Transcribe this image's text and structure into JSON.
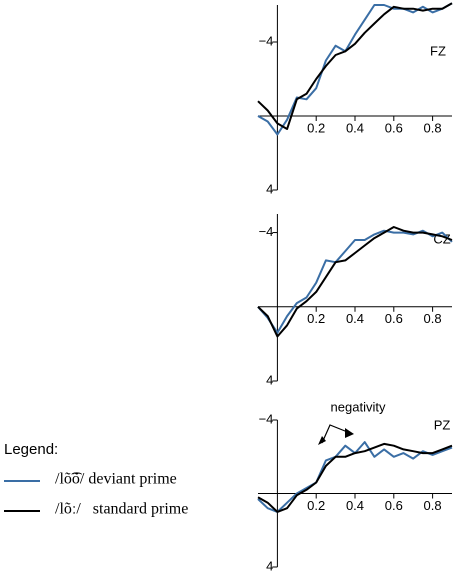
{
  "legend_title": "Legend:",
  "chart_data": [
    {
      "type": "line",
      "title": "FZ",
      "x": [
        -0.1,
        -0.05,
        0,
        0.05,
        0.1,
        0.15,
        0.2,
        0.25,
        0.3,
        0.35,
        0.4,
        0.45,
        0.5,
        0.55,
        0.6,
        0.65,
        0.7,
        0.75,
        0.8,
        0.85,
        0.9
      ],
      "xlim": [
        -0.1,
        0.9
      ],
      "xticks": [
        0.2,
        0.4,
        0.6,
        0.8
      ],
      "ylim": [
        4,
        -6
      ],
      "yticks": [
        {
          "value": -4,
          "label": "−4"
        },
        4
      ],
      "series": [
        {
          "name": "/lõ͡õ/ deviant prime",
          "color": "#3a6ea5",
          "values": [
            0.0,
            0.3,
            1.0,
            0.2,
            -1.0,
            -0.9,
            -1.5,
            -3.0,
            -3.8,
            -3.5,
            -4.4,
            -5.2,
            -6.0,
            -6.0,
            -5.8,
            -5.8,
            -5.6,
            -5.9,
            -5.6,
            -5.8,
            -6.1
          ]
        },
        {
          "name": "/lõː/   standard prime",
          "color": "#000000",
          "values": [
            -0.8,
            -0.3,
            0.4,
            0.7,
            -0.9,
            -1.2,
            -2.0,
            -2.7,
            -3.3,
            -3.5,
            -3.9,
            -4.5,
            -5.0,
            -5.5,
            -5.9,
            -5.8,
            -5.8,
            -5.7,
            -5.8,
            -5.8,
            -6.1
          ]
        }
      ]
    },
    {
      "type": "line",
      "title": "CZ",
      "x": [
        -0.1,
        -0.05,
        0,
        0.05,
        0.1,
        0.15,
        0.2,
        0.25,
        0.3,
        0.35,
        0.4,
        0.45,
        0.5,
        0.55,
        0.6,
        0.65,
        0.7,
        0.75,
        0.8,
        0.85,
        0.9
      ],
      "xlim": [
        -0.1,
        0.9
      ],
      "xticks": [
        0.2,
        0.4,
        0.6,
        0.8
      ],
      "ylim": [
        4,
        -5
      ],
      "yticks": [
        {
          "value": -4,
          "label": "−4"
        },
        4
      ],
      "series": [
        {
          "name": "/lõ͡õ/ deviant prime",
          "color": "#3a6ea5",
          "values": [
            0,
            0.6,
            1.4,
            0.5,
            -0.2,
            -0.5,
            -1.3,
            -2.5,
            -2.4,
            -3.0,
            -3.6,
            -3.6,
            -3.9,
            -4.1,
            -4.0,
            -4.0,
            -3.9,
            -4.1,
            -3.8,
            -4.0,
            -3.5
          ]
        },
        {
          "name": "/lõː/   standard prime",
          "color": "#000000",
          "values": [
            0,
            0.5,
            1.6,
            1.0,
            0.1,
            -0.3,
            -0.8,
            -1.6,
            -2.4,
            -2.5,
            -2.9,
            -3.3,
            -3.7,
            -4.0,
            -4.3,
            -4.1,
            -4.0,
            -4.0,
            -3.9,
            -3.8,
            -3.6
          ]
        }
      ]
    },
    {
      "type": "line",
      "title": "PZ",
      "annotation": "negativity",
      "x": [
        -0.1,
        -0.05,
        0,
        0.05,
        0.1,
        0.15,
        0.2,
        0.25,
        0.3,
        0.35,
        0.4,
        0.45,
        0.5,
        0.55,
        0.6,
        0.65,
        0.7,
        0.75,
        0.8,
        0.85,
        0.9
      ],
      "xlim": [
        -0.1,
        0.9
      ],
      "xticks": [
        0.2,
        0.4,
        0.6,
        0.8
      ],
      "ylim": [
        4,
        -4
      ],
      "yticks": [
        {
          "value": -4,
          "label": "−4"
        },
        4
      ],
      "series": [
        {
          "name": "/lõ͡õ/ deviant prime",
          "color": "#3a6ea5",
          "values": [
            0.3,
            0.8,
            1.0,
            0.5,
            0.0,
            -0.3,
            -0.6,
            -1.8,
            -2.0,
            -2.6,
            -2.2,
            -2.8,
            -2.0,
            -2.4,
            -2.0,
            -2.2,
            -1.9,
            -2.3,
            -2.1,
            -2.3,
            -2.5
          ]
        },
        {
          "name": "/lõː/   standard prime",
          "color": "#000000",
          "values": [
            0.2,
            0.5,
            1.0,
            0.8,
            0.1,
            -0.2,
            -0.6,
            -1.5,
            -2.0,
            -2.0,
            -2.2,
            -2.3,
            -2.5,
            -2.7,
            -2.6,
            -2.4,
            -2.3,
            -2.2,
            -2.2,
            -2.4,
            -2.6
          ]
        }
      ]
    }
  ]
}
